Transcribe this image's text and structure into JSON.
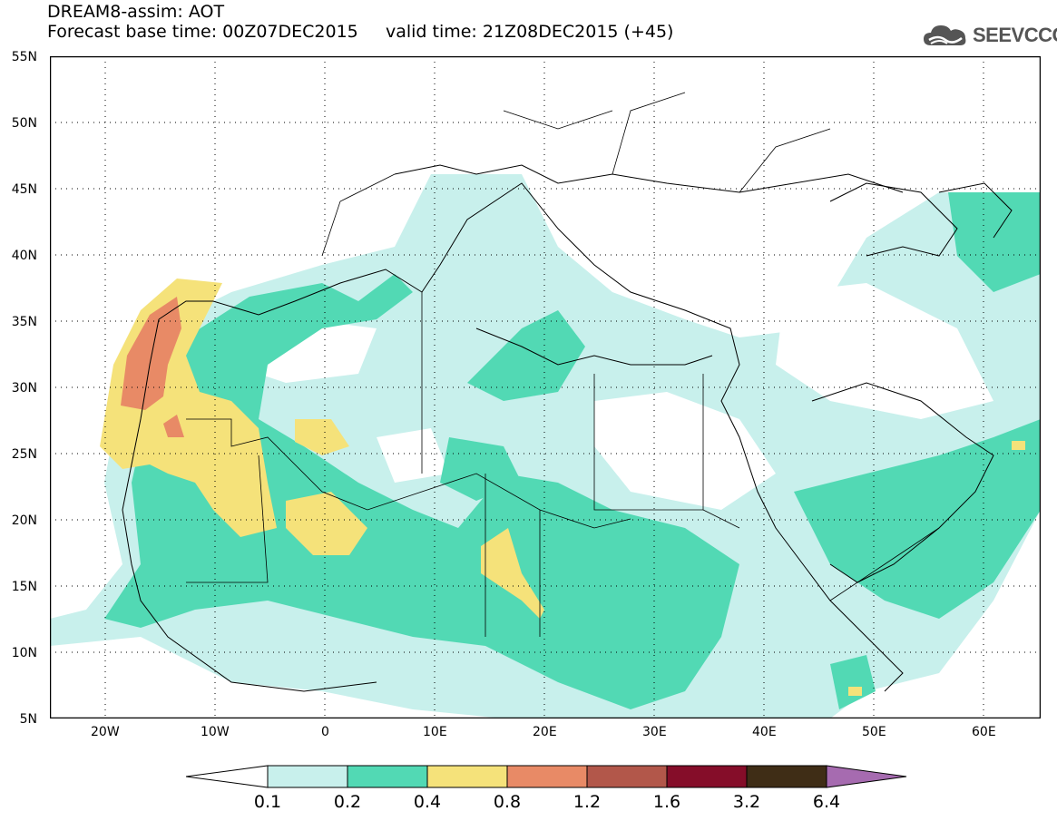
{
  "header": {
    "title_line1": "DREAM8-assim: AOT",
    "title_line2": "Forecast base time: 00Z07DEC2015     valid time: 21Z08DEC2015 (+45)",
    "logo_text": "SEEVCCC"
  },
  "map": {
    "lat_labels": [
      "55N",
      "50N",
      "45N",
      "40N",
      "35N",
      "30N",
      "25N",
      "20N",
      "15N",
      "10N",
      "5N"
    ],
    "lon_labels": [
      "20W",
      "10W",
      "0",
      "10E",
      "20E",
      "30E",
      "40E",
      "50E",
      "60E"
    ],
    "lat_range": [
      5,
      55
    ],
    "lon_range": [
      -25,
      65
    ],
    "gridlines": "dotted"
  },
  "legend": {
    "labels": [
      "0.1",
      "0.2",
      "0.4",
      "0.8",
      "1.2",
      "1.6",
      "3.2",
      "6.4"
    ],
    "colors": [
      "#ffffff",
      "#c8f0ec",
      "#52d9b4",
      "#f5e27a",
      "#e88a66",
      "#b2574a",
      "#850d29",
      "#3f2d16",
      "#a66bb0"
    ]
  }
}
